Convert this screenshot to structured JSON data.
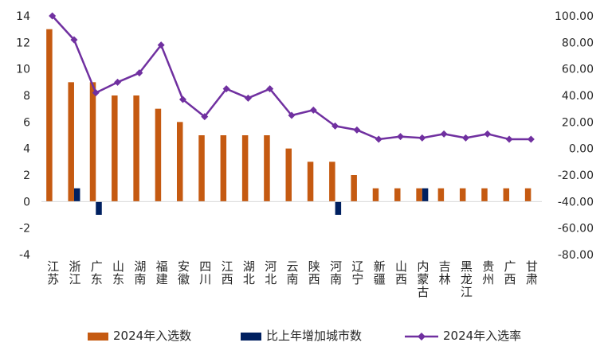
{
  "chart_data": {
    "type": "bar",
    "categories": [
      "江苏",
      "浙江",
      "广东",
      "山东",
      "湖南",
      "福建",
      "安徽",
      "四川",
      "江西",
      "湖北",
      "河北",
      "云南",
      "陕西",
      "河南",
      "辽宁",
      "新疆",
      "山西",
      "内蒙古",
      "吉林",
      "黑龙江",
      "贵州",
      "广西",
      "甘肃"
    ],
    "series": [
      {
        "name": "2024年入选数",
        "type": "bar",
        "axis": "left",
        "color": "#C55A11",
        "values": [
          13,
          9,
          9,
          8,
          8,
          7,
          6,
          5,
          5,
          5,
          5,
          4,
          3,
          3,
          2,
          1,
          1,
          1,
          1,
          1,
          1,
          1,
          1
        ]
      },
      {
        "name": "比上年增加城市数",
        "type": "bar",
        "axis": "left",
        "color": "#002060",
        "values": [
          0,
          1,
          -1,
          0,
          0,
          0,
          0,
          0,
          0,
          0,
          0,
          0,
          0,
          -1,
          0,
          0,
          0,
          1,
          0,
          0,
          0,
          0,
          0
        ]
      },
      {
        "name": "2024年入选率",
        "type": "line",
        "axis": "right",
        "color": "#7030A0",
        "marker": "diamond",
        "values": [
          100,
          82,
          42,
          50,
          57,
          78,
          37,
          24,
          45,
          38,
          45,
          25,
          29,
          17,
          14,
          7,
          9,
          8,
          11,
          8,
          11,
          7,
          7
        ]
      }
    ],
    "y_left": {
      "min": -4,
      "max": 14,
      "ticks": [
        "-4",
        "-2",
        "0",
        "2",
        "4",
        "6",
        "8",
        "10",
        "12",
        "14"
      ]
    },
    "y_right": {
      "min": -80,
      "max": 100,
      "ticks": [
        "-80.00",
        "-60.00",
        "-40.00",
        "-20.00",
        "0.00",
        "20.00",
        "40.00",
        "60.00",
        "80.00",
        "100.00"
      ]
    },
    "grid": false,
    "legend_position": "bottom"
  }
}
